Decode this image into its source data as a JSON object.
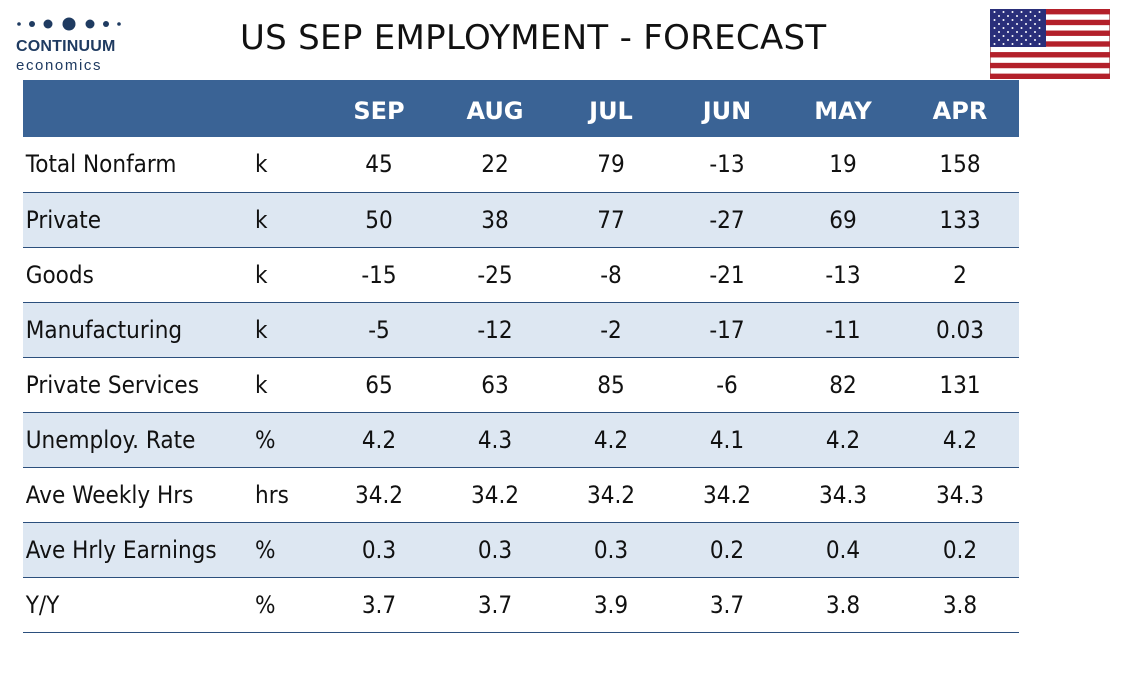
{
  "brand": {
    "name": "CONTINUUM",
    "sub": "economics",
    "color": "#1f3b61"
  },
  "title": "US SEP EMPLOYMENT - FORECAST",
  "flag_icon": "us-flag-icon",
  "colors": {
    "header_bg": "#3a6395",
    "alt_row_bg": "#dde7f2",
    "rule": "#2b4f7d"
  },
  "table": {
    "columns": [
      "SEP",
      "AUG",
      "JUL",
      "JUN",
      "MAY",
      "APR"
    ],
    "rows": [
      {
        "label": "Total Nonfarm",
        "unit": "k",
        "values": [
          "45",
          "22",
          "79",
          "-13",
          "19",
          "158"
        ]
      },
      {
        "label": "Private",
        "unit": "k",
        "values": [
          "50",
          "38",
          "77",
          "-27",
          "69",
          "133"
        ]
      },
      {
        "label": "Goods",
        "unit": "k",
        "values": [
          "-15",
          "-25",
          "-8",
          "-21",
          "-13",
          "2"
        ]
      },
      {
        "label": "Manufacturing",
        "unit": "k",
        "values": [
          "-5",
          "-12",
          "-2",
          "-17",
          "-11",
          "0.03"
        ]
      },
      {
        "label": "Private Services",
        "unit": "k",
        "values": [
          "65",
          "63",
          "85",
          "-6",
          "82",
          "131"
        ]
      },
      {
        "label": "Unemploy. Rate",
        "unit": "%",
        "values": [
          "4.2",
          "4.3",
          "4.2",
          "4.1",
          "4.2",
          "4.2"
        ]
      },
      {
        "label": "Ave Weekly Hrs",
        "unit": "hrs",
        "values": [
          "34.2",
          "34.2",
          "34.2",
          "34.2",
          "34.3",
          "34.3"
        ]
      },
      {
        "label": "Ave Hrly Earnings",
        "unit": "%",
        "values": [
          "0.3",
          "0.3",
          "0.3",
          "0.2",
          "0.4",
          "0.2"
        ]
      },
      {
        "label": "Y/Y",
        "unit": "%",
        "values": [
          "3.7",
          "3.7",
          "3.9",
          "3.7",
          "3.8",
          "3.8"
        ]
      }
    ]
  }
}
